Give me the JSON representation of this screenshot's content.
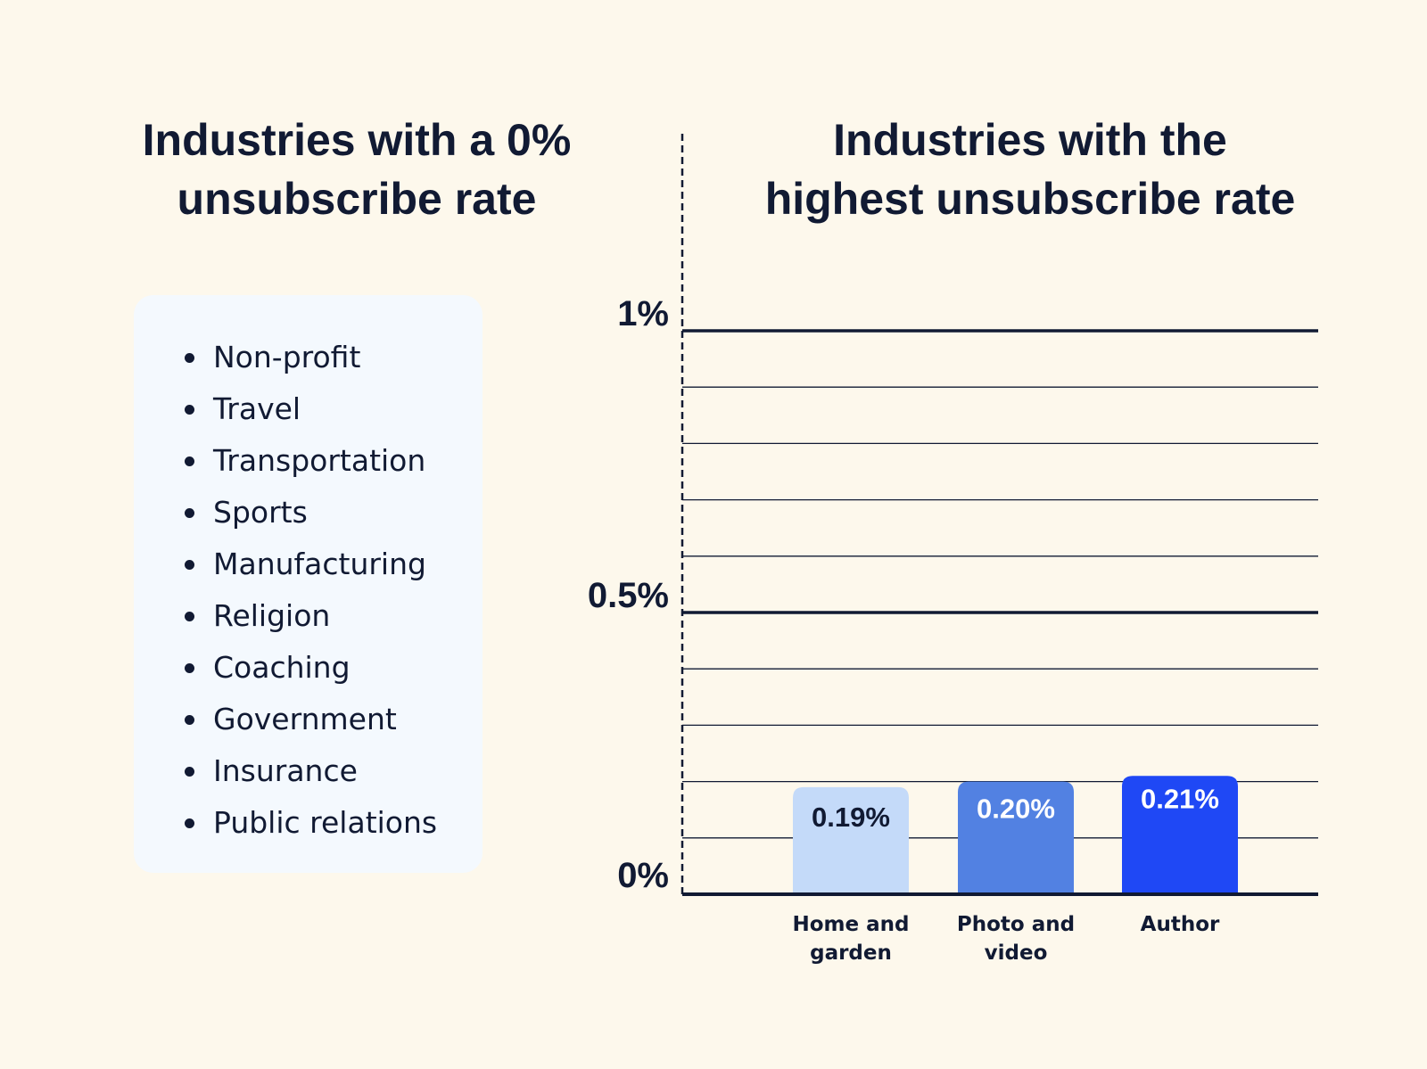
{
  "left_panel": {
    "title_line1": "Industries with a 0%",
    "title_line2": "unsubscribe rate",
    "items": [
      "Non-profit",
      "Travel",
      "Transportation",
      "Sports",
      "Manufacturing",
      "Religion",
      "Coaching",
      "Government",
      "Insurance",
      "Public relations"
    ]
  },
  "chart_data": {
    "type": "bar",
    "title": "Industries with the highest unsubscribe rate",
    "title_line1": "Industries with the",
    "title_line2": "highest unsubscribe rate",
    "categories": [
      [
        "Home and",
        "garden"
      ],
      [
        "Photo and",
        "video"
      ],
      [
        "Author"
      ]
    ],
    "values": [
      0.19,
      0.2,
      0.21
    ],
    "data_labels": [
      "0.19%",
      "0.20%",
      "0.21%"
    ],
    "colors": [
      "#c4daf9",
      "#5281e2",
      "#1f48f5"
    ],
    "label_colors": [
      "#111a33",
      "#ffffff",
      "#ffffff"
    ],
    "ylim": [
      0,
      1
    ],
    "yticks": [
      {
        "value": 0,
        "label": "0%"
      },
      {
        "value": 0.5,
        "label": "0.5%"
      },
      {
        "value": 1,
        "label": "1%"
      }
    ],
    "minor_grid_step": 0.1,
    "grid": true,
    "xlabel": "",
    "ylabel": ""
  }
}
